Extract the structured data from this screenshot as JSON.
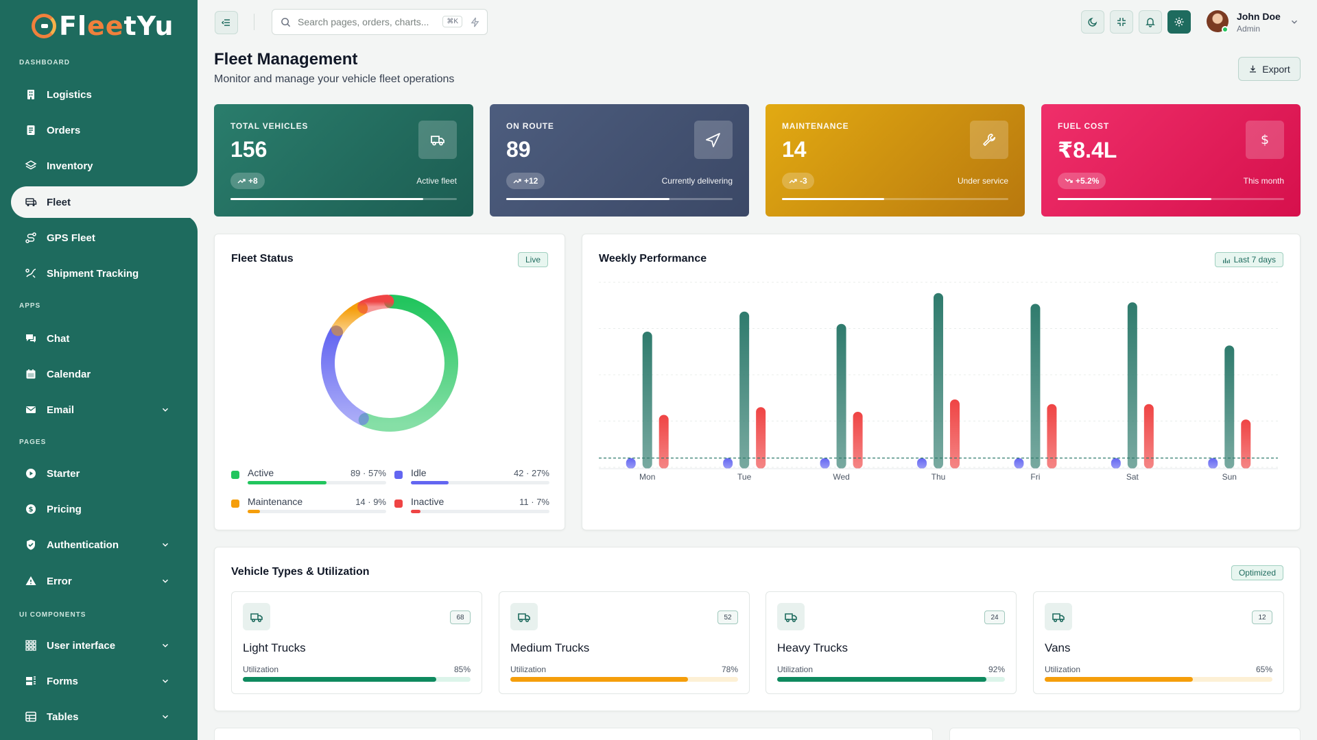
{
  "app": {
    "logo_prefix": "Fl",
    "logo_accent": "ee",
    "logo_suffix": "tYu"
  },
  "sidebar": {
    "sections": [
      "DASHBOARD",
      "APPS",
      "PAGES",
      "UI COMPONENTS"
    ],
    "items": [
      {
        "label": "Logistics",
        "icon": "building-icon"
      },
      {
        "label": "Orders",
        "icon": "orders-icon"
      },
      {
        "label": "Inventory",
        "icon": "layers-icon"
      },
      {
        "label": "Fleet",
        "icon": "bus-icon",
        "active": true
      },
      {
        "label": "GPS Fleet",
        "icon": "route-icon"
      },
      {
        "label": "Shipment Tracking",
        "icon": "tracking-icon"
      },
      {
        "label": "Chat",
        "icon": "chat-icon"
      },
      {
        "label": "Calendar",
        "icon": "calendar-icon"
      },
      {
        "label": "Email",
        "icon": "mail-icon",
        "expandable": true
      },
      {
        "label": "Starter",
        "icon": "play-icon"
      },
      {
        "label": "Pricing",
        "icon": "dollar-icon"
      },
      {
        "label": "Authentication",
        "icon": "shield-icon",
        "expandable": true
      },
      {
        "label": "Error",
        "icon": "warning-icon",
        "expandable": true
      },
      {
        "label": "User interface",
        "icon": "grid-icon",
        "expandable": true
      },
      {
        "label": "Forms",
        "icon": "forms-icon",
        "expandable": true
      },
      {
        "label": "Tables",
        "icon": "table-icon",
        "expandable": true
      }
    ]
  },
  "topbar": {
    "search_placeholder": "Search pages, orders, charts...",
    "shortcut": "⌘K",
    "user_name": "John Doe",
    "user_role": "Admin"
  },
  "page": {
    "title": "Fleet Management",
    "subtitle": "Monitor and manage your vehicle fleet operations",
    "export_label": "Export"
  },
  "stats": [
    {
      "label": "TOTAL VEHICLES",
      "value": "156",
      "change": "+8",
      "note": "Active fleet",
      "progress": 0.85,
      "trend": "up",
      "icon": "truck-icon",
      "gradient": [
        "#2a7d6c",
        "#1c5d52"
      ]
    },
    {
      "label": "ON ROUTE",
      "value": "89",
      "change": "+12",
      "note": "Currently delivering",
      "progress": 0.72,
      "trend": "up",
      "icon": "navigation-icon",
      "gradient": [
        "#4d5d7e",
        "#3b4866"
      ]
    },
    {
      "label": "MAINTENANCE",
      "value": "14",
      "change": "-3",
      "note": "Under service",
      "progress": 0.45,
      "trend": "up",
      "icon": "wrench-icon",
      "gradient": [
        "#e2aa12",
        "#b8780e"
      ]
    },
    {
      "label": "FUEL COST",
      "value": "₹8.4L",
      "change": "+5.2%",
      "note": "This month",
      "progress": 0.68,
      "trend": "down",
      "icon": "dollar-icon",
      "gradient": [
        "#ef2f6a",
        "#d6104c"
      ]
    }
  ],
  "fleet_status": {
    "title": "Fleet Status",
    "badge": "Live",
    "legend": [
      {
        "name": "Active",
        "value": "89 · 57%",
        "count": 89,
        "pct": 0.57,
        "color": "#22c55e"
      },
      {
        "name": "Idle",
        "value": "42 · 27%",
        "count": 42,
        "pct": 0.27,
        "color": "#6366f1"
      },
      {
        "name": "Maintenance",
        "value": "14 · 9%",
        "count": 14,
        "pct": 0.09,
        "color": "#f59e0b"
      },
      {
        "name": "Inactive",
        "value": "11 · 7%",
        "count": 11,
        "pct": 0.07,
        "color": "#ef4444"
      }
    ]
  },
  "weekly": {
    "title": "Weekly Performance",
    "badge": "Last 7 days"
  },
  "chart_data": {
    "type": "bar",
    "categories": [
      "Mon",
      "Tue",
      "Wed",
      "Thu",
      "Fri",
      "Sat",
      "Sun"
    ],
    "series": [
      {
        "values": [
          6,
          6,
          6,
          6,
          6,
          6,
          6
        ],
        "color": "#6366f1"
      },
      {
        "values": [
          88,
          101,
          93,
          113,
          106,
          107,
          79
        ],
        "color": "#2f7b6d"
      },
      {
        "values": [
          34,
          39,
          36,
          44,
          41,
          41,
          31
        ],
        "color": "#ef4444"
      }
    ],
    "baseline": 6,
    "ylim": [
      0,
      120
    ],
    "grid": true
  },
  "vehicles": {
    "title": "Vehicle Types & Utilization",
    "badge": "Optimized",
    "util_label": "Utilization",
    "items": [
      {
        "name": "Light Trucks",
        "count": "68",
        "pct_label": "85%",
        "pct": 0.85,
        "color": "#0f8a5f",
        "track": "#dcf4ea"
      },
      {
        "name": "Medium Trucks",
        "count": "52",
        "pct_label": "78%",
        "pct": 0.78,
        "color": "#f59e0b",
        "track": "#fdf0d5"
      },
      {
        "name": "Heavy Trucks",
        "count": "24",
        "pct_label": "92%",
        "pct": 0.92,
        "color": "#0f8a5f",
        "track": "#dcf4ea"
      },
      {
        "name": "Vans",
        "count": "12",
        "pct_label": "65%",
        "pct": 0.65,
        "color": "#f59e0b",
        "track": "#fdf0d5"
      }
    ]
  }
}
